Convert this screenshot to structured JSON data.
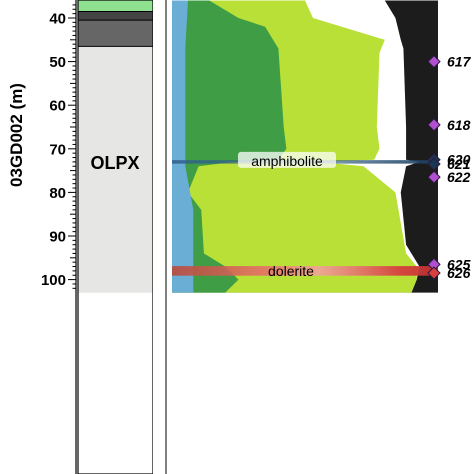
{
  "chart_data": {
    "type": "area",
    "ylabel": "03GD002 (m)",
    "ylim": [
      36,
      103
    ],
    "y_ticks": [
      40,
      50,
      60,
      70,
      80,
      90,
      100
    ],
    "lithology_column": [
      {
        "from": 36,
        "to": 38.5,
        "color": "#8fe08f"
      },
      {
        "from": 38.5,
        "to": 40.5,
        "color": "#444444"
      },
      {
        "from": 40.5,
        "to": 46.5,
        "color": "#666666"
      },
      {
        "from": 46.5,
        "to": 103,
        "color": "#e6e6e4"
      }
    ],
    "unit_label": {
      "text": "OLPX",
      "depth": 73
    },
    "layers": [
      {
        "color": "#6aaed6",
        "depth": [
          36,
          47,
          70,
          72.5,
          73,
          74,
          84,
          94,
          97,
          100,
          103
        ],
        "right": [
          0.06,
          0.05,
          0.05,
          0.05,
          0.05,
          0.05,
          0.08,
          0.08,
          0.08,
          0.08,
          0.08
        ]
      },
      {
        "color": "#3f9e45",
        "depth": [
          36,
          40,
          42,
          47,
          65,
          70,
          72.5,
          73,
          74,
          80,
          84,
          94,
          97,
          100,
          103
        ],
        "right": [
          0.14,
          0.25,
          0.35,
          0.4,
          0.42,
          0.43,
          0.4,
          0.23,
          0.1,
          0.06,
          0.11,
          0.12,
          0.2,
          0.25,
          0.2
        ]
      },
      {
        "color": "#b8e036",
        "depth": [
          36,
          40,
          45,
          48,
          65,
          70,
          72.5,
          73,
          74,
          80,
          94,
          97,
          100,
          103
        ],
        "right": [
          0.5,
          0.53,
          0.8,
          0.78,
          0.77,
          0.78,
          0.76,
          0.55,
          0.72,
          0.84,
          0.88,
          0.92,
          0.92,
          0.9
        ]
      },
      {
        "color": "#ffffff",
        "depth": [
          36,
          40,
          45,
          47,
          65,
          72.5,
          73,
          74,
          80,
          92,
          97,
          100,
          103
        ],
        "right": [
          0.8,
          0.84,
          0.86,
          0.87,
          0.88,
          0.88,
          0.93,
          0.88,
          0.86,
          0.88,
          0.93,
          0.92,
          0.9
        ]
      },
      {
        "color": "#1c1c1c",
        "depth": [
          36,
          103
        ],
        "right": [
          1,
          1
        ]
      }
    ],
    "bands": [
      {
        "label": "amphibolite",
        "depth": 73,
        "thickness": 0.8,
        "color": "#2e5f8a"
      },
      {
        "label": "dolerite",
        "depth": 98,
        "thickness": 2.2,
        "color": "#d95050"
      }
    ],
    "samples": [
      {
        "label": "617",
        "depth": 50
      },
      {
        "label": "618",
        "depth": 64.5
      },
      {
        "label": "620",
        "depth": 72.5
      },
      {
        "label": "621",
        "depth": 73.5
      },
      {
        "label": "622",
        "depth": 76.5
      },
      {
        "label": "625",
        "depth": 96.5
      },
      {
        "label": "626",
        "depth": 98.5
      }
    ]
  }
}
